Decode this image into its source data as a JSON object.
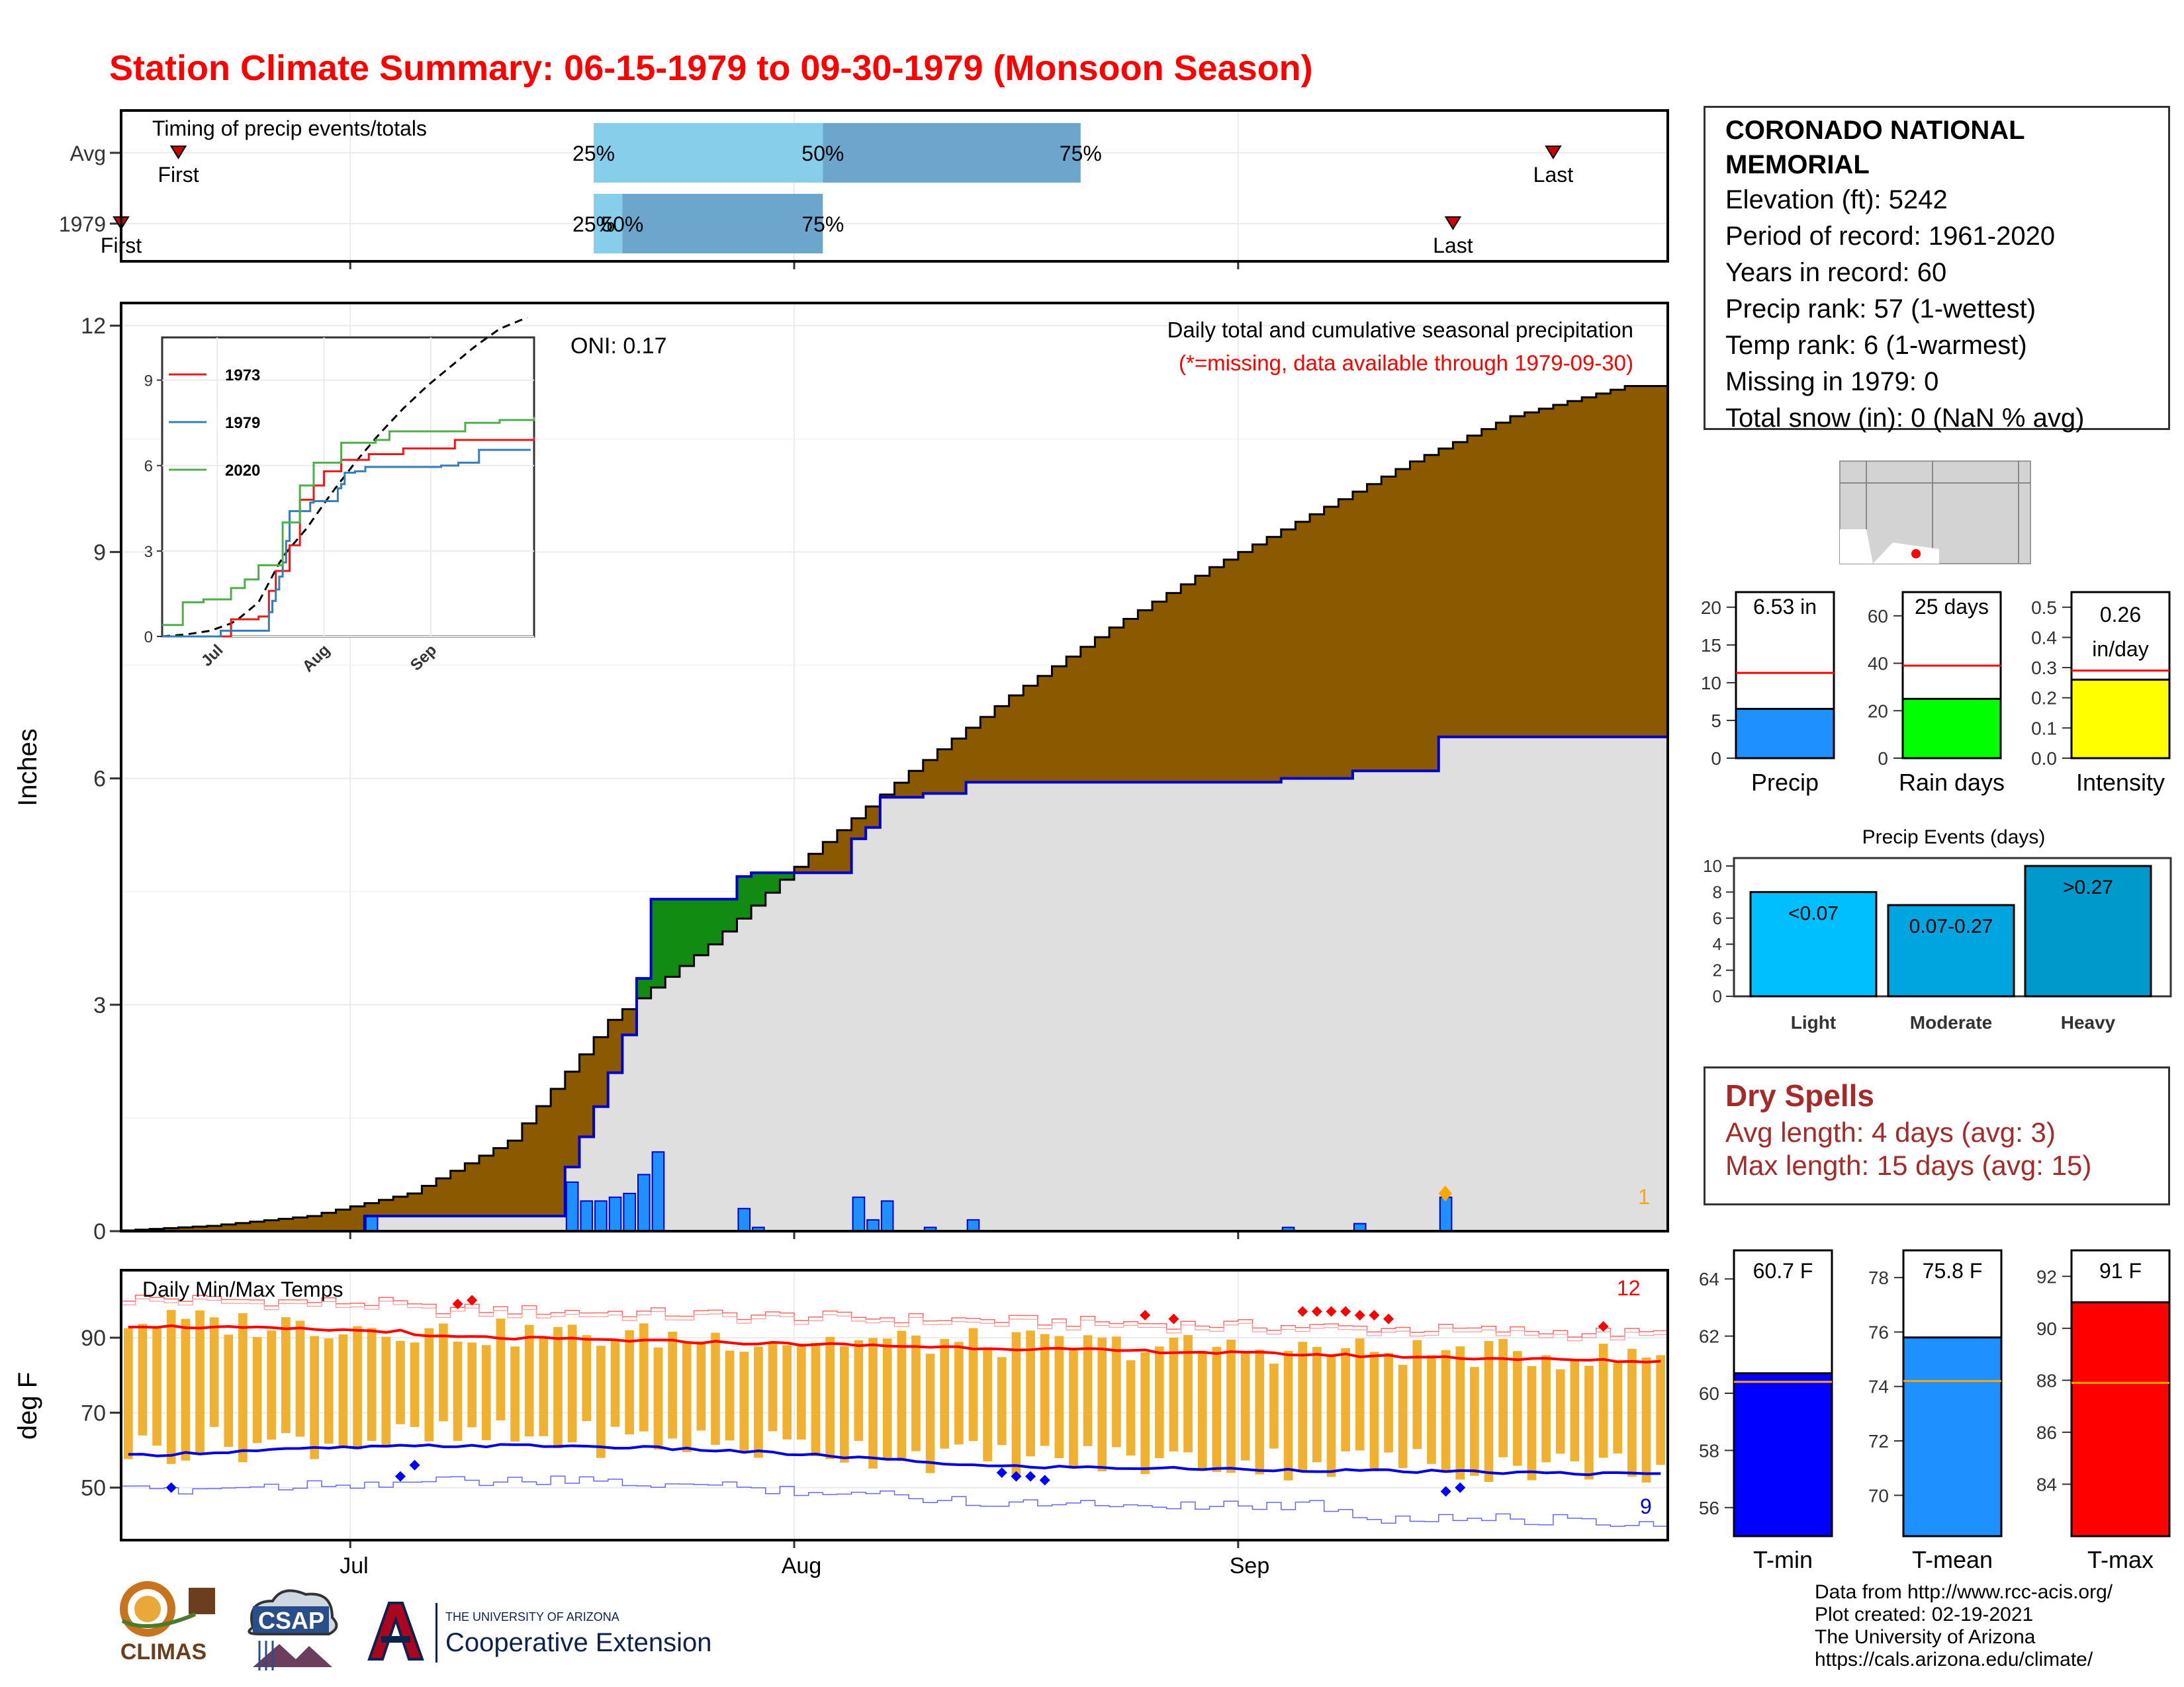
{
  "title": "Station Climate Summary: 06-15-1979 to 09-30-1979 (Monsoon Season)",
  "month_labels": [
    "Jul",
    "Aug",
    "Sep"
  ],
  "timing_panel": {
    "label": "Timing of precip events/totals",
    "rows": [
      {
        "name": "Avg",
        "first_label": "First",
        "last_label": "Last",
        "p25_label": "25%",
        "p50_label": "50%",
        "p75_label": "75%",
        "first_day": 4,
        "p25_day": 33,
        "p50_day": 49,
        "p75_day": 67,
        "last_day": 100
      },
      {
        "name": "1979",
        "first_label": "First",
        "last_label": "Last",
        "p25_label": "25%",
        "p50_label": "50%",
        "p75_label": "75%",
        "first_day": 0,
        "p25_day": 33,
        "p50_day": 35,
        "p75_day": 49,
        "last_day": 93
      }
    ]
  },
  "precip_panel": {
    "ylabel": "Inches",
    "yticks": [
      "0",
      "3",
      "6",
      "9",
      "12"
    ],
    "ymax": 12.3,
    "oni_label": "ONI: 0.17",
    "subtitle": "Daily total and cumulative seasonal precipitation",
    "note": "(*=missing, data available through 1979-09-30)",
    "count_label": "1",
    "colors": {
      "avg_fill": "#8b5a00",
      "above_fill": "#118b11",
      "under_fill": "#dfdfdf",
      "line": "#0000cc",
      "daily_bar": "#1e90ff"
    }
  },
  "inset": {
    "series": [
      {
        "name": "1973",
        "color": "#e41a1c"
      },
      {
        "name": "1979",
        "color": "#377eb8"
      },
      {
        "name": "2020",
        "color": "#4daf4a"
      }
    ],
    "yticks": [
      "0",
      "3",
      "6",
      "9"
    ],
    "xticks": [
      "Jul",
      "Aug",
      "Sep"
    ]
  },
  "temp_panel": {
    "ylabel": "deg F",
    "label": "Daily Min/Max Temps",
    "yticks": [
      "50",
      "70",
      "90"
    ],
    "ymin": 36,
    "ymax": 108,
    "high_count_label": "12",
    "low_count_label": "9"
  },
  "station": {
    "name": "CORONADO NATIONAL MEMORIAL",
    "elevation": "Elevation (ft): 5242",
    "period": "Period of record: 1961-2020",
    "years": "Years in record: 60",
    "precip_rank": "Precip rank: 57 (1-wettest)",
    "temp_rank": "Temp rank: 6 (1-warmest)",
    "missing": "Missing in 1979: 0",
    "snow": "Total snow (in): 0 (NaN % avg)"
  },
  "summary_bars": [
    {
      "label": "Precip",
      "value_label": "6.53 in",
      "value": 6.53,
      "avg": 11.3,
      "ymax": 22,
      "yticks": [
        "0",
        "5",
        "10",
        "15",
        "20"
      ],
      "tickvals": [
        0,
        5,
        10,
        15,
        20
      ],
      "color": "#1e90ff"
    },
    {
      "label": "Rain days",
      "value_label": "25 days",
      "value": 25,
      "avg": 39,
      "ymax": 70,
      "yticks": [
        "0",
        "20",
        "40",
        "60"
      ],
      "tickvals": [
        0,
        20,
        40,
        60
      ],
      "color": "#00ff00"
    },
    {
      "label": "Intensity",
      "value_label": "0.26 in/day",
      "value": 0.26,
      "avg": 0.29,
      "ymax": 0.55,
      "yticks": [
        "0.0",
        "0.1",
        "0.2",
        "0.3",
        "0.4",
        "0.5"
      ],
      "tickvals": [
        0,
        0.1,
        0.2,
        0.3,
        0.4,
        0.5
      ],
      "color": "#ffff00"
    }
  ],
  "precip_events": {
    "title": "Precip Events (days)",
    "yticks": [
      "0",
      "2",
      "4",
      "6",
      "8",
      "10"
    ],
    "bars": [
      {
        "label": "Light",
        "range": "<0.07",
        "value": 8,
        "color": "#00bfff"
      },
      {
        "label": "Moderate",
        "range": "0.07-0.27",
        "value": 7,
        "color": "#00a5e0"
      },
      {
        "label": "Heavy",
        "range": ">0.27",
        "value": 10,
        "color": "#0099cc"
      }
    ]
  },
  "dry_spells": {
    "title": "Dry Spells",
    "avg_length": "Avg length: 4 days (avg: 3)",
    "max_length": "Max length: 15 days (avg: 15)"
  },
  "temp_bars": [
    {
      "label": "T-min",
      "value_label": "60.7 F",
      "value": 60.7,
      "avg": 60.4,
      "ymin": 55,
      "ymax": 65,
      "yticks": [
        "56",
        "58",
        "60",
        "62",
        "64"
      ],
      "tickvals": [
        56,
        58,
        60,
        62,
        64
      ],
      "color": "#0000ff"
    },
    {
      "label": "T-mean",
      "value_label": "75.8 F",
      "value": 75.8,
      "avg": 74.2,
      "ymin": 68.5,
      "ymax": 79,
      "yticks": [
        "70",
        "72",
        "74",
        "76",
        "78"
      ],
      "tickvals": [
        70,
        72,
        74,
        76,
        78
      ],
      "color": "#1e90ff"
    },
    {
      "label": "T-max",
      "value_label": "91 F",
      "value": 91,
      "avg": 87.9,
      "ymin": 82,
      "ymax": 93,
      "yticks": [
        "84",
        "86",
        "88",
        "90",
        "92"
      ],
      "tickvals": [
        84,
        86,
        88,
        90,
        92
      ],
      "color": "#ff0000"
    }
  ],
  "credits": {
    "line1": "Data from http://www.rcc-acis.org/",
    "line2": "Plot created: 02-19-2021",
    "line3": "The University of Arizona",
    "line4": "https://cals.arizona.edu/climate/"
  },
  "logos": {
    "climas": "CLIMAS",
    "csap": "CSAP",
    "ua_line1": "THE UNIVERSITY OF ARIZONA",
    "ua_line2": "Cooperative Extension"
  },
  "chart_data": {
    "type": "area",
    "title": "Daily total and cumulative seasonal precipitation",
    "x_range": [
      "1979-06-15",
      "1979-09-30"
    ],
    "ylabel": "Inches",
    "ylim": [
      0,
      12.3
    ],
    "avg_cumulative_keypoints": [
      [
        0,
        0.0
      ],
      [
        7,
        0.07
      ],
      [
        14,
        0.2
      ],
      [
        21,
        0.5
      ],
      [
        28,
        1.2
      ],
      [
        35,
        2.8
      ],
      [
        42,
        3.8
      ],
      [
        49,
        5.0
      ],
      [
        56,
        6.1
      ],
      [
        63,
        7.1
      ],
      [
        70,
        8.0
      ],
      [
        77,
        8.8
      ],
      [
        84,
        9.5
      ],
      [
        91,
        10.2
      ],
      [
        98,
        10.8
      ],
      [
        106,
        11.2
      ]
    ],
    "daily_1979": [
      {
        "date": "1979-07-02",
        "value": 0.2
      },
      {
        "date": "1979-07-16",
        "value": 0.65
      },
      {
        "date": "1979-07-17",
        "value": 0.4
      },
      {
        "date": "1979-07-18",
        "value": 0.4
      },
      {
        "date": "1979-07-19",
        "value": 0.45
      },
      {
        "date": "1979-07-20",
        "value": 0.5
      },
      {
        "date": "1979-07-21",
        "value": 0.75
      },
      {
        "date": "1979-07-22",
        "value": 1.05
      },
      {
        "date": "1979-07-28",
        "value": 0.3
      },
      {
        "date": "1979-07-29",
        "value": 0.05
      },
      {
        "date": "1979-08-05",
        "value": 0.45
      },
      {
        "date": "1979-08-06",
        "value": 0.15
      },
      {
        "date": "1979-08-07",
        "value": 0.4
      },
      {
        "date": "1979-08-10",
        "value": 0.05
      },
      {
        "date": "1979-08-13",
        "value": 0.15
      },
      {
        "date": "1979-09-04",
        "value": 0.05
      },
      {
        "date": "1979-09-09",
        "value": 0.1
      },
      {
        "date": "1979-09-15",
        "value": 0.45
      }
    ],
    "temp_series": {
      "ymin": 36,
      "ymax": 108
    }
  }
}
